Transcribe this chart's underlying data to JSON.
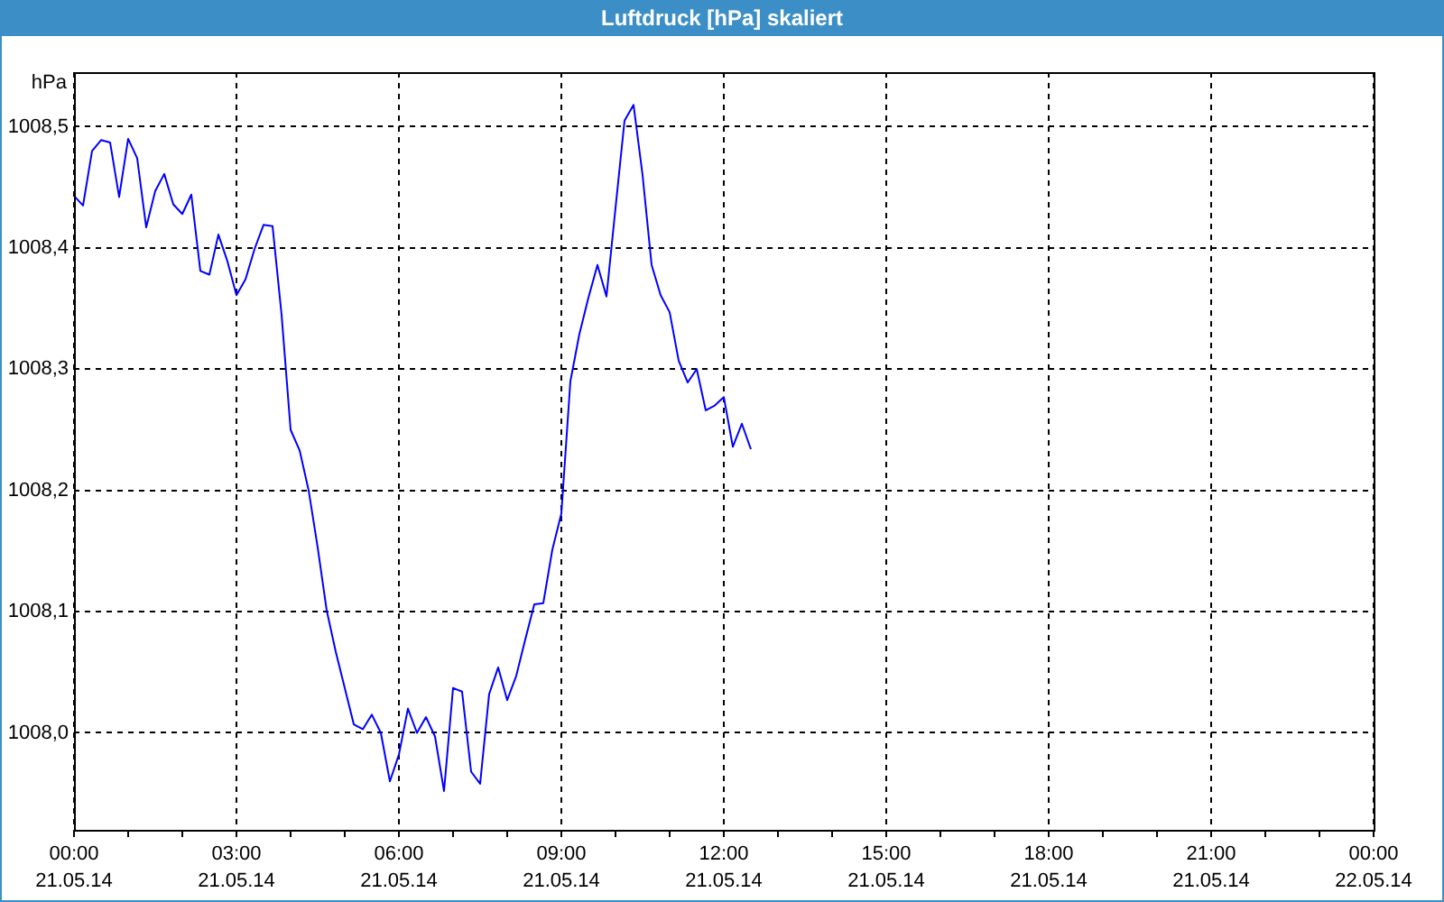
{
  "chart_data": {
    "type": "line",
    "title": "Luftdruck [hPa] skaliert",
    "ylabel": "hPa",
    "x": [
      "--05-21T00:00",
      "--05-21T00:10",
      "--05-21T00:20",
      "--05-21T00:30",
      "--05-21T00:40",
      "--05-21T00:50",
      "--05-21T01:00",
      "--05-21T01:10",
      "--05-21T01:20",
      "--05-21T01:30",
      "--05-21T01:40",
      "--05-21T01:50",
      "--05-21T02:00",
      "--05-21T02:10",
      "--05-21T02:20",
      "--05-21T02:30",
      "--05-21T02:40",
      "--05-21T02:50",
      "--05-21T03:00",
      "--05-21T03:10",
      "--05-21T03:20",
      "--05-21T03:30",
      "--05-21T03:40",
      "--05-21T03:50",
      "--05-21T04:00",
      "--05-21T04:10",
      "--05-21T04:20",
      "--05-21T04:30",
      "--05-21T04:40",
      "--05-21T04:50",
      "--05-21T05:00",
      "--05-21T05:10",
      "--05-21T05:20",
      "--05-21T05:30",
      "--05-21T05:40",
      "--05-21T05:50",
      "--05-21T06:00",
      "--05-21T06:10",
      "--05-21T06:20",
      "--05-21T06:30",
      "--05-21T06:40",
      "--05-21T06:50",
      "--05-21T07:00",
      "--05-21T07:10",
      "--05-21T07:20",
      "--05-21T07:30",
      "--05-21T07:40",
      "--05-21T07:50",
      "--05-21T08:00",
      "--05-21T08:10",
      "--05-21T08:20",
      "--05-21T08:30",
      "--05-21T08:40",
      "--05-21T08:50",
      "--05-21T09:00",
      "--05-21T09:10",
      "--05-21T09:20",
      "--05-21T09:30",
      "--05-21T09:40",
      "--05-21T09:50",
      "--05-21T10:00",
      "--05-21T10:10",
      "--05-21T10:20",
      "--05-21T10:30",
      "--05-21T10:40",
      "--05-21T10:50",
      "--05-21T11:00",
      "--05-21T11:10",
      "--05-21T11:20",
      "--05-21T11:30",
      "--05-21T11:40",
      "--05-21T11:50",
      "--05-21T12:00",
      "--05-21T12:10",
      "--05-21T12:20",
      "--05-21T12:30"
    ],
    "values": [
      1008.443,
      1008.435,
      1008.48,
      1008.489,
      1008.487,
      1008.442,
      1008.49,
      1008.474,
      1008.417,
      1008.447,
      1008.461,
      1008.436,
      1008.428,
      1008.444,
      1008.381,
      1008.378,
      1008.411,
      1008.389,
      1008.361,
      1008.374,
      1008.399,
      1008.419,
      1008.418,
      1008.345,
      1008.25,
      1008.233,
      1008.2,
      1008.153,
      1008.101,
      1008.067,
      1008.037,
      1008.007,
      1008.003,
      1008.015,
      1008.0,
      1007.96,
      1007.982,
      1008.02,
      1008.0,
      1008.013,
      1007.997,
      1007.952,
      1008.037,
      1008.034,
      1007.968,
      1007.958,
      1008.032,
      1008.054,
      1008.027,
      1008.047,
      1008.077,
      1008.106,
      1008.107,
      1008.151,
      1008.181,
      1008.29,
      1008.329,
      1008.359,
      1008.386,
      1008.36,
      1008.433,
      1008.505,
      1008.518,
      1008.46,
      1008.386,
      1008.361,
      1008.347,
      1008.307,
      1008.289,
      1008.3,
      1008.266,
      1008.27,
      1008.277,
      1008.236,
      1008.255,
      1008.234
    ],
    "color": "#0000ff",
    "marker": "none",
    "line_style": "solid",
    "xlim": [
      "--05-21T00:00",
      "--05-22T00:00"
    ],
    "xticks": [
      {
        "value": "--05-21T00:00",
        "label": "00:00\n21.05.14"
      },
      {
        "value": "--05-21T01:00",
        "label": null
      },
      {
        "value": "--05-21T02:00",
        "label": null
      },
      {
        "value": "--05-21T03:00",
        "label": "03:00\n21.05.14"
      },
      {
        "value": "--05-21T04:00",
        "label": null
      },
      {
        "value": "--05-21T05:00",
        "label": null
      },
      {
        "value": "--05-21T06:00",
        "label": "06:00\n21.05.14"
      },
      {
        "value": "--05-21T07:00",
        "label": null
      },
      {
        "value": "--05-21T08:00",
        "label": null
      },
      {
        "value": "--05-21T09:00",
        "label": "09:00\n21.05.14"
      },
      {
        "value": "--05-21T10:00",
        "label": null
      },
      {
        "value": "--05-21T11:00",
        "label": null
      },
      {
        "value": "--05-21T12:00",
        "label": "12:00\n21.05.14"
      },
      {
        "value": "--05-21T13:00",
        "label": null
      },
      {
        "value": "--05-21T14:00",
        "label": null
      },
      {
        "value": "--05-21T15:00",
        "label": "15:00\n21.05.14"
      },
      {
        "value": "--05-21T16:00",
        "label": null
      },
      {
        "value": "--05-21T17:00",
        "label": null
      },
      {
        "value": "--05-21T18:00",
        "label": "18:00\n21.05.14"
      },
      {
        "value": "--05-21T19:00",
        "label": null
      },
      {
        "value": "--05-21T20:00",
        "label": null
      },
      {
        "value": "--05-21T21:00",
        "label": "21:00\n21.05.14"
      },
      {
        "value": "--05-21T22:00",
        "label": null
      },
      {
        "value": "--05-21T23:00",
        "label": null
      },
      {
        "value": "--05-22T00:00",
        "label": "00:00\n22.05.14"
      }
    ],
    "ylim": [
      1007.92,
      1008.545
    ],
    "yticks": [
      {
        "value": 1008.0,
        "label": "1008,0"
      },
      {
        "value": 1008.1,
        "label": "1008,1"
      },
      {
        "value": 1008.2,
        "label": "1008,2"
      },
      {
        "value": 1008.3,
        "label": "1008,3"
      },
      {
        "value": 1008.4,
        "label": "1008,4"
      },
      {
        "value": 1008.5,
        "label": "1008,5"
      }
    ],
    "grid": true
  }
}
